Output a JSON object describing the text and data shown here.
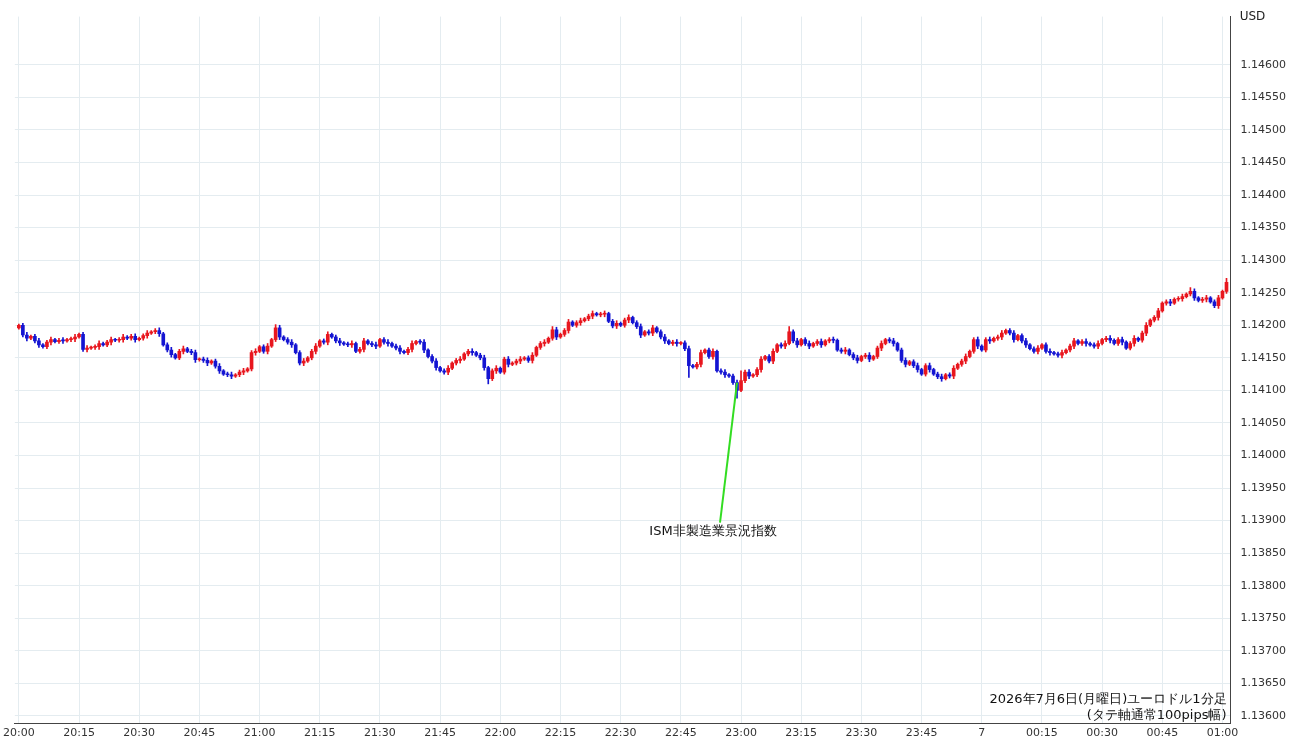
{
  "chart_data": {
    "type": "candlestick",
    "ylabel": "USD",
    "annotations": [
      {
        "text": "ISM非製造業景況指数",
        "x": "2026-07-06T22:59",
        "y": 1.14112
      },
      "2026年7月6日(月曜日)ユーロドル1分足",
      "(タテ軸通常100pips幅)"
    ],
    "xlim": [
      "2026-07-06T19:59",
      "2026-07-07T01:02"
    ],
    "xticks": [
      {
        "value": "2026-07-06T20:00",
        "label": "20:00"
      },
      {
        "value": "2026-07-06T20:15",
        "label": "20:15"
      },
      {
        "value": "2026-07-06T20:30",
        "label": "20:30"
      },
      {
        "value": "2026-07-06T20:45",
        "label": "20:45"
      },
      {
        "value": "2026-07-06T21:00",
        "label": "21:00"
      },
      {
        "value": "2026-07-06T21:15",
        "label": "21:15"
      },
      {
        "value": "2026-07-06T21:30",
        "label": "21:30"
      },
      {
        "value": "2026-07-06T21:45",
        "label": "21:45"
      },
      {
        "value": "2026-07-06T22:00",
        "label": "22:00"
      },
      {
        "value": "2026-07-06T22:15",
        "label": "22:15"
      },
      {
        "value": "2026-07-06T22:30",
        "label": "22:30"
      },
      {
        "value": "2026-07-06T22:45",
        "label": "22:45"
      },
      {
        "value": "2026-07-06T23:00",
        "label": "23:00"
      },
      {
        "value": "2026-07-06T23:15",
        "label": "23:15"
      },
      {
        "value": "2026-07-06T23:30",
        "label": "23:30"
      },
      {
        "value": "2026-07-06T23:45",
        "label": "23:45"
      },
      {
        "value": "2026-07-07T00:00",
        "label": "7"
      },
      {
        "value": "2026-07-07T00:15",
        "label": "00:15"
      },
      {
        "value": "2026-07-07T00:30",
        "label": "00:30"
      },
      {
        "value": "2026-07-07T00:45",
        "label": "00:45"
      },
      {
        "value": "2026-07-07T01:00",
        "label": "01:00"
      }
    ],
    "ylim": [
      1.13588,
      1.14674
    ],
    "yticks": [
      {
        "value": 1.136,
        "label": "1.13600"
      },
      {
        "value": 1.1365,
        "label": "1.13650"
      },
      {
        "value": 1.137,
        "label": "1.13700"
      },
      {
        "value": 1.1375,
        "label": "1.13750"
      },
      {
        "value": 1.138,
        "label": "1.13800"
      },
      {
        "value": 1.1385,
        "label": "1.13850"
      },
      {
        "value": 1.139,
        "label": "1.13900"
      },
      {
        "value": 1.1395,
        "label": "1.13950"
      },
      {
        "value": 1.14,
        "label": "1.14000"
      },
      {
        "value": 1.1405,
        "label": "1.14050"
      },
      {
        "value": 1.141,
        "label": "1.14100"
      },
      {
        "value": 1.1415,
        "label": "1.14150"
      },
      {
        "value": 1.142,
        "label": "1.14200"
      },
      {
        "value": 1.1425,
        "label": "1.14250"
      },
      {
        "value": 1.143,
        "label": "1.14300"
      },
      {
        "value": 1.1435,
        "label": "1.14350"
      },
      {
        "value": 1.144,
        "label": "1.14400"
      },
      {
        "value": 1.1445,
        "label": "1.14450"
      },
      {
        "value": 1.145,
        "label": "1.14500"
      },
      {
        "value": 1.1455,
        "label": "1.14550"
      },
      {
        "value": 1.146,
        "label": "1.14600"
      }
    ],
    "grid": true,
    "x": [
      "2026-07-06T20:00",
      "2026-07-06T20:01",
      "2026-07-06T20:02",
      "2026-07-06T20:03",
      "2026-07-06T20:04",
      "2026-07-06T20:05",
      "2026-07-06T20:06",
      "2026-07-06T20:07",
      "2026-07-06T20:08",
      "2026-07-06T20:09",
      "2026-07-06T20:10",
      "2026-07-06T20:11",
      "2026-07-06T20:12",
      "2026-07-06T20:13",
      "2026-07-06T20:14",
      "2026-07-06T20:15",
      "2026-07-06T20:16",
      "2026-07-06T20:17",
      "2026-07-06T20:18",
      "2026-07-06T20:19",
      "2026-07-06T20:20",
      "2026-07-06T20:21",
      "2026-07-06T20:22",
      "2026-07-06T20:23",
      "2026-07-06T20:24",
      "2026-07-06T20:25",
      "2026-07-06T20:26",
      "2026-07-06T20:27",
      "2026-07-06T20:28",
      "2026-07-06T20:29",
      "2026-07-06T20:30",
      "2026-07-06T20:31",
      "2026-07-06T20:32",
      "2026-07-06T20:33",
      "2026-07-06T20:34",
      "2026-07-06T20:35",
      "2026-07-06T20:36",
      "2026-07-06T20:37",
      "2026-07-06T20:38",
      "2026-07-06T20:39",
      "2026-07-06T20:40",
      "2026-07-06T20:41",
      "2026-07-06T20:42",
      "2026-07-06T20:43",
      "2026-07-06T20:44",
      "2026-07-06T20:45",
      "2026-07-06T20:46",
      "2026-07-06T20:47",
      "2026-07-06T20:48",
      "2026-07-06T20:49",
      "2026-07-06T20:50",
      "2026-07-06T20:51",
      "2026-07-06T20:52",
      "2026-07-06T20:53",
      "2026-07-06T20:54",
      "2026-07-06T20:55",
      "2026-07-06T20:56",
      "2026-07-06T20:57",
      "2026-07-06T20:58",
      "2026-07-06T20:59",
      "2026-07-06T21:00",
      "2026-07-06T21:01",
      "2026-07-06T21:02",
      "2026-07-06T21:03",
      "2026-07-06T21:04",
      "2026-07-06T21:05",
      "2026-07-06T21:06",
      "2026-07-06T21:07",
      "2026-07-06T21:08",
      "2026-07-06T21:09",
      "2026-07-06T21:10",
      "2026-07-06T21:11",
      "2026-07-06T21:12",
      "2026-07-06T21:13",
      "2026-07-06T21:14",
      "2026-07-06T21:15",
      "2026-07-06T21:16",
      "2026-07-06T21:17",
      "2026-07-06T21:18",
      "2026-07-06T21:19",
      "2026-07-06T21:20",
      "2026-07-06T21:21",
      "2026-07-06T21:22",
      "2026-07-06T21:23",
      "2026-07-06T21:24",
      "2026-07-06T21:25",
      "2026-07-06T21:26",
      "2026-07-06T21:27",
      "2026-07-06T21:28",
      "2026-07-06T21:29",
      "2026-07-06T21:30",
      "2026-07-06T21:31",
      "2026-07-06T21:32",
      "2026-07-06T21:33",
      "2026-07-06T21:34",
      "2026-07-06T21:35",
      "2026-07-06T21:36",
      "2026-07-06T21:37",
      "2026-07-06T21:38",
      "2026-07-06T21:39",
      "2026-07-06T21:40",
      "2026-07-06T21:41",
      "2026-07-06T21:42",
      "2026-07-06T21:43",
      "2026-07-06T21:44",
      "2026-07-06T21:45",
      "2026-07-06T21:46",
      "2026-07-06T21:47",
      "2026-07-06T21:48",
      "2026-07-06T21:49",
      "2026-07-06T21:50",
      "2026-07-06T21:51",
      "2026-07-06T21:52",
      "2026-07-06T21:53",
      "2026-07-06T21:54",
      "2026-07-06T21:55",
      "2026-07-06T21:56",
      "2026-07-06T21:57",
      "2026-07-06T21:58",
      "2026-07-06T21:59",
      "2026-07-06T22:00",
      "2026-07-06T22:01",
      "2026-07-06T22:02",
      "2026-07-06T22:03",
      "2026-07-06T22:04",
      "2026-07-06T22:05",
      "2026-07-06T22:06",
      "2026-07-06T22:07",
      "2026-07-06T22:08",
      "2026-07-06T22:09",
      "2026-07-06T22:10",
      "2026-07-06T22:11",
      "2026-07-06T22:12",
      "2026-07-06T22:13",
      "2026-07-06T22:14",
      "2026-07-06T22:15",
      "2026-07-06T22:16",
      "2026-07-06T22:17",
      "2026-07-06T22:18",
      "2026-07-06T22:19",
      "2026-07-06T22:20",
      "2026-07-06T22:21",
      "2026-07-06T22:22",
      "2026-07-06T22:23",
      "2026-07-06T22:24",
      "2026-07-06T22:25",
      "2026-07-06T22:26",
      "2026-07-06T22:27",
      "2026-07-06T22:28",
      "2026-07-06T22:29",
      "2026-07-06T22:30",
      "2026-07-06T22:31",
      "2026-07-06T22:32",
      "2026-07-06T22:33",
      "2026-07-06T22:34",
      "2026-07-06T22:35",
      "2026-07-06T22:36",
      "2026-07-06T22:37",
      "2026-07-06T22:38",
      "2026-07-06T22:39",
      "2026-07-06T22:40",
      "2026-07-06T22:41",
      "2026-07-06T22:42",
      "2026-07-06T22:43",
      "2026-07-06T22:44",
      "2026-07-06T22:45",
      "2026-07-06T22:46",
      "2026-07-06T22:47",
      "2026-07-06T22:48",
      "2026-07-06T22:49",
      "2026-07-06T22:50",
      "2026-07-06T22:51",
      "2026-07-06T22:52",
      "2026-07-06T22:53",
      "2026-07-06T22:54",
      "2026-07-06T22:55",
      "2026-07-06T22:56",
      "2026-07-06T22:57",
      "2026-07-06T22:58",
      "2026-07-06T22:59",
      "2026-07-06T23:00",
      "2026-07-06T23:01",
      "2026-07-06T23:02",
      "2026-07-06T23:03",
      "2026-07-06T23:04",
      "2026-07-06T23:05",
      "2026-07-06T23:06",
      "2026-07-06T23:07",
      "2026-07-06T23:08",
      "2026-07-06T23:09",
      "2026-07-06T23:10",
      "2026-07-06T23:11",
      "2026-07-06T23:12",
      "2026-07-06T23:13",
      "2026-07-06T23:14",
      "2026-07-06T23:15",
      "2026-07-06T23:16",
      "2026-07-06T23:17",
      "2026-07-06T23:18",
      "2026-07-06T23:19",
      "2026-07-06T23:20",
      "2026-07-06T23:21",
      "2026-07-06T23:22",
      "2026-07-06T23:23",
      "2026-07-06T23:24",
      "2026-07-06T23:25",
      "2026-07-06T23:26",
      "2026-07-06T23:27",
      "2026-07-06T23:28",
      "2026-07-06T23:29",
      "2026-07-06T23:30",
      "2026-07-06T23:31",
      "2026-07-06T23:32",
      "2026-07-06T23:33",
      "2026-07-06T23:34",
      "2026-07-06T23:35",
      "2026-07-06T23:36",
      "2026-07-06T23:37",
      "2026-07-06T23:38",
      "2026-07-06T23:39",
      "2026-07-06T23:40",
      "2026-07-06T23:41",
      "2026-07-06T23:42",
      "2026-07-06T23:43",
      "2026-07-06T23:44",
      "2026-07-06T23:45",
      "2026-07-06T23:46",
      "2026-07-06T23:47",
      "2026-07-06T23:48",
      "2026-07-06T23:49",
      "2026-07-06T23:50",
      "2026-07-06T23:51",
      "2026-07-06T23:52",
      "2026-07-06T23:53",
      "2026-07-06T23:54",
      "2026-07-06T23:55",
      "2026-07-06T23:56",
      "2026-07-06T23:57",
      "2026-07-06T23:58",
      "2026-07-06T23:59",
      "2026-07-07T00:00",
      "2026-07-07T00:01",
      "2026-07-07T00:02",
      "2026-07-07T00:03",
      "2026-07-07T00:04",
      "2026-07-07T00:05",
      "2026-07-07T00:06",
      "2026-07-07T00:07",
      "2026-07-07T00:08",
      "2026-07-07T00:09",
      "2026-07-07T00:10",
      "2026-07-07T00:11",
      "2026-07-07T00:12",
      "2026-07-07T00:13",
      "2026-07-07T00:14",
      "2026-07-07T00:15",
      "2026-07-07T00:16",
      "2026-07-07T00:17",
      "2026-07-07T00:18",
      "2026-07-07T00:19",
      "2026-07-07T00:20",
      "2026-07-07T00:21",
      "2026-07-07T00:22",
      "2026-07-07T00:23",
      "2026-07-07T00:24",
      "2026-07-07T00:25",
      "2026-07-07T00:26",
      "2026-07-07T00:27",
      "2026-07-07T00:28",
      "2026-07-07T00:29",
      "2026-07-07T00:30",
      "2026-07-07T00:31",
      "2026-07-07T00:32",
      "2026-07-07T00:33",
      "2026-07-07T00:34",
      "2026-07-07T00:35",
      "2026-07-07T00:36",
      "2026-07-07T00:37",
      "2026-07-07T00:38",
      "2026-07-07T00:39",
      "2026-07-07T00:40",
      "2026-07-07T00:41",
      "2026-07-07T00:42",
      "2026-07-07T00:43",
      "2026-07-07T00:44",
      "2026-07-07T00:45",
      "2026-07-07T00:46",
      "2026-07-07T00:47",
      "2026-07-07T00:48",
      "2026-07-07T00:49",
      "2026-07-07T00:50",
      "2026-07-07T00:51",
      "2026-07-07T00:52",
      "2026-07-07T00:53",
      "2026-07-07T00:54",
      "2026-07-07T00:55",
      "2026-07-07T00:56",
      "2026-07-07T00:57",
      "2026-07-07T00:58",
      "2026-07-07T00:59",
      "2026-07-07T01:00",
      "2026-07-07T01:01"
    ],
    "ohlc": [
      [
        1.14196,
        1.14202,
        1.14194,
        1.142
      ],
      [
        1.142,
        1.14203,
        1.14182,
        1.14185
      ],
      [
        1.14185,
        1.14189,
        1.14176,
        1.1418
      ],
      [
        1.1418,
        1.14185,
        1.14178,
        1.14183
      ],
      [
        1.14183,
        1.14186,
        1.14173,
        1.14176
      ],
      [
        1.14176,
        1.1418,
        1.14166,
        1.1417
      ],
      [
        1.1417,
        1.14172,
        1.14165,
        1.14167
      ],
      [
        1.14167,
        1.14177,
        1.14164,
        1.14174
      ],
      [
        1.14174,
        1.14182,
        1.1417,
        1.14178
      ],
      [
        1.14178,
        1.1418,
        1.14173,
        1.14175
      ],
      [
        1.14175,
        1.1418,
        1.14172,
        1.14177
      ],
      [
        1.14177,
        1.14181,
        1.14172,
        1.14176
      ],
      [
        1.14176,
        1.1418,
        1.14174,
        1.14178
      ],
      [
        1.14178,
        1.14182,
        1.14175,
        1.14179
      ],
      [
        1.14179,
        1.14186,
        1.14175,
        1.14182
      ],
      [
        1.14182,
        1.14188,
        1.1418,
        1.14186
      ],
      [
        1.14186,
        1.14189,
        1.1416,
        1.14163
      ],
      [
        1.14163,
        1.14169,
        1.14159,
        1.14165
      ],
      [
        1.14165,
        1.14168,
        1.14163,
        1.14166
      ],
      [
        1.14166,
        1.1417,
        1.14163,
        1.14167
      ],
      [
        1.14167,
        1.14176,
        1.14163,
        1.14172
      ],
      [
        1.14172,
        1.14174,
        1.14168,
        1.1417
      ],
      [
        1.1417,
        1.14177,
        1.14167,
        1.14174
      ],
      [
        1.14174,
        1.14182,
        1.1417,
        1.14178
      ],
      [
        1.14178,
        1.1418,
        1.14175,
        1.14177
      ],
      [
        1.14177,
        1.14181,
        1.14174,
        1.14178
      ],
      [
        1.14178,
        1.14186,
        1.14174,
        1.14182
      ],
      [
        1.14182,
        1.14184,
        1.14178,
        1.1418
      ],
      [
        1.1418,
        1.14186,
        1.14177,
        1.14183
      ],
      [
        1.14183,
        1.14187,
        1.14174,
        1.14178
      ],
      [
        1.14178,
        1.14182,
        1.14176,
        1.1418
      ],
      [
        1.1418,
        1.14187,
        1.14177,
        1.14184
      ],
      [
        1.14184,
        1.14192,
        1.1418,
        1.14188
      ],
      [
        1.14188,
        1.14192,
        1.14186,
        1.1419
      ],
      [
        1.1419,
        1.14195,
        1.14187,
        1.14192
      ],
      [
        1.14192,
        1.14196,
        1.14183,
        1.14187
      ],
      [
        1.14187,
        1.14189,
        1.14168,
        1.1417
      ],
      [
        1.1417,
        1.14173,
        1.14159,
        1.14162
      ],
      [
        1.14162,
        1.14166,
        1.14151,
        1.14155
      ],
      [
        1.14155,
        1.14157,
        1.14148,
        1.1415
      ],
      [
        1.1415,
        1.14163,
        1.14147,
        1.1416
      ],
      [
        1.1416,
        1.14168,
        1.14156,
        1.14164
      ],
      [
        1.14164,
        1.14166,
        1.14158,
        1.1416
      ],
      [
        1.1416,
        1.14163,
        1.14155,
        1.14158
      ],
      [
        1.14158,
        1.14162,
        1.14143,
        1.14147
      ],
      [
        1.14147,
        1.1415,
        1.14145,
        1.14148
      ],
      [
        1.14148,
        1.14151,
        1.14143,
        1.14146
      ],
      [
        1.14146,
        1.1415,
        1.14138,
        1.14142
      ],
      [
        1.14142,
        1.14147,
        1.1414,
        1.14145
      ],
      [
        1.14145,
        1.14148,
        1.14134,
        1.14137
      ],
      [
        1.14137,
        1.14141,
        1.14126,
        1.1413
      ],
      [
        1.1413,
        1.14132,
        1.14123,
        1.14125
      ],
      [
        1.14125,
        1.14128,
        1.14121,
        1.14124
      ],
      [
        1.14124,
        1.14128,
        1.14118,
        1.14122
      ],
      [
        1.14122,
        1.14126,
        1.1412,
        1.14124
      ],
      [
        1.14124,
        1.14131,
        1.14121,
        1.14128
      ],
      [
        1.14128,
        1.14134,
        1.14124,
        1.1413
      ],
      [
        1.1413,
        1.14135,
        1.14128,
        1.14133
      ],
      [
        1.14133,
        1.14161,
        1.1413,
        1.14158
      ],
      [
        1.14158,
        1.14164,
        1.14154,
        1.1416
      ],
      [
        1.1416,
        1.14169,
        1.14158,
        1.14167
      ],
      [
        1.14167,
        1.1417,
        1.14157,
        1.1416
      ],
      [
        1.1416,
        1.14172,
        1.14156,
        1.14168
      ],
      [
        1.14168,
        1.1418,
        1.14166,
        1.14178
      ],
      [
        1.14178,
        1.14201,
        1.14175,
        1.14196
      ],
      [
        1.14196,
        1.142,
        1.14178,
        1.14182
      ],
      [
        1.14182,
        1.14184,
        1.14176,
        1.14178
      ],
      [
        1.14178,
        1.14181,
        1.14171,
        1.14174
      ],
      [
        1.14174,
        1.14178,
        1.14166,
        1.1417
      ],
      [
        1.1417,
        1.14172,
        1.14156,
        1.14158
      ],
      [
        1.14158,
        1.14161,
        1.14139,
        1.14142
      ],
      [
        1.14142,
        1.14149,
        1.14138,
        1.14145
      ],
      [
        1.14145,
        1.14152,
        1.14143,
        1.1415
      ],
      [
        1.1415,
        1.14163,
        1.14147,
        1.1416
      ],
      [
        1.1416,
        1.14172,
        1.14156,
        1.14168
      ],
      [
        1.14168,
        1.14178,
        1.14166,
        1.14176
      ],
      [
        1.14176,
        1.14179,
        1.14171,
        1.14174
      ],
      [
        1.14174,
        1.1419,
        1.1417,
        1.14186
      ],
      [
        1.14186,
        1.14188,
        1.1418,
        1.14182
      ],
      [
        1.14182,
        1.14185,
        1.14173,
        1.14176
      ],
      [
        1.14176,
        1.1418,
        1.14169,
        1.14173
      ],
      [
        1.14173,
        1.14175,
        1.14169,
        1.14171
      ],
      [
        1.14171,
        1.14174,
        1.14167,
        1.1417
      ],
      [
        1.1417,
        1.14176,
        1.14166,
        1.14172
      ],
      [
        1.14172,
        1.14174,
        1.14158,
        1.1416
      ],
      [
        1.1416,
        1.14166,
        1.14157,
        1.14163
      ],
      [
        1.14163,
        1.1418,
        1.14159,
        1.14176
      ],
      [
        1.14176,
        1.14178,
        1.1417,
        1.14172
      ],
      [
        1.14172,
        1.14175,
        1.14167,
        1.1417
      ],
      [
        1.1417,
        1.14174,
        1.14164,
        1.14168
      ],
      [
        1.14168,
        1.1418,
        1.14166,
        1.14178
      ],
      [
        1.14178,
        1.14181,
        1.14171,
        1.14174
      ],
      [
        1.14174,
        1.14178,
        1.14168,
        1.14172
      ],
      [
        1.14172,
        1.14174,
        1.14166,
        1.14168
      ],
      [
        1.14168,
        1.14171,
        1.14162,
        1.14165
      ],
      [
        1.14165,
        1.14169,
        1.14156,
        1.1416
      ],
      [
        1.1416,
        1.14162,
        1.14156,
        1.14158
      ],
      [
        1.14158,
        1.14166,
        1.14155,
        1.14163
      ],
      [
        1.14163,
        1.14176,
        1.14159,
        1.14172
      ],
      [
        1.14172,
        1.14177,
        1.1417,
        1.14175
      ],
      [
        1.14175,
        1.14178,
        1.14171,
        1.14174
      ],
      [
        1.14174,
        1.14178,
        1.14158,
        1.14162
      ],
      [
        1.14162,
        1.14164,
        1.1415,
        1.14152
      ],
      [
        1.14152,
        1.14155,
        1.14142,
        1.14145
      ],
      [
        1.14145,
        1.14149,
        1.14131,
        1.14135
      ],
      [
        1.14135,
        1.14137,
        1.14128,
        1.1413
      ],
      [
        1.1413,
        1.14133,
        1.14125,
        1.14128
      ],
      [
        1.14128,
        1.14138,
        1.14124,
        1.14134
      ],
      [
        1.14134,
        1.14144,
        1.14132,
        1.14142
      ],
      [
        1.14142,
        1.14149,
        1.14139,
        1.14146
      ],
      [
        1.14146,
        1.14152,
        1.14142,
        1.14148
      ],
      [
        1.14148,
        1.14158,
        1.14146,
        1.14156
      ],
      [
        1.14156,
        1.14163,
        1.14153,
        1.1416
      ],
      [
        1.1416,
        1.14164,
        1.14154,
        1.14158
      ],
      [
        1.14158,
        1.1416,
        1.14152,
        1.14154
      ],
      [
        1.14154,
        1.14157,
        1.14147,
        1.1415
      ],
      [
        1.1415,
        1.14154,
        1.14131,
        1.14135
      ],
      [
        1.14135,
        1.14137,
        1.1411,
        1.14118
      ],
      [
        1.14118,
        1.14133,
        1.14115,
        1.1413
      ],
      [
        1.1413,
        1.14138,
        1.14126,
        1.14134
      ],
      [
        1.14134,
        1.14136,
        1.14126,
        1.14128
      ],
      [
        1.14128,
        1.14151,
        1.14125,
        1.14148
      ],
      [
        1.14148,
        1.14152,
        1.14136,
        1.1414
      ],
      [
        1.1414,
        1.14144,
        1.14138,
        1.14142
      ],
      [
        1.14142,
        1.14148,
        1.14139,
        1.14145
      ],
      [
        1.14145,
        1.14152,
        1.14141,
        1.14148
      ],
      [
        1.14148,
        1.14152,
        1.14146,
        1.1415
      ],
      [
        1.1415,
        1.14153,
        1.14143,
        1.14146
      ],
      [
        1.14146,
        1.14158,
        1.14142,
        1.14154
      ],
      [
        1.14154,
        1.14168,
        1.14152,
        1.14166
      ],
      [
        1.14166,
        1.14175,
        1.14163,
        1.14172
      ],
      [
        1.14172,
        1.14178,
        1.14168,
        1.14174
      ],
      [
        1.14174,
        1.14182,
        1.14172,
        1.1418
      ],
      [
        1.1418,
        1.14198,
        1.14177,
        1.14193
      ],
      [
        1.14193,
        1.14197,
        1.14178,
        1.14182
      ],
      [
        1.14182,
        1.14188,
        1.1418,
        1.14186
      ],
      [
        1.14186,
        1.14195,
        1.14183,
        1.14192
      ],
      [
        1.14192,
        1.14209,
        1.14188,
        1.14205
      ],
      [
        1.14205,
        1.14207,
        1.14198,
        1.142
      ],
      [
        1.142,
        1.14207,
        1.14197,
        1.14204
      ],
      [
        1.14204,
        1.14211,
        1.142,
        1.14207
      ],
      [
        1.14207,
        1.14212,
        1.14205,
        1.1421
      ],
      [
        1.1421,
        1.14217,
        1.14207,
        1.14214
      ],
      [
        1.14214,
        1.14222,
        1.1421,
        1.14218
      ],
      [
        1.14218,
        1.1422,
        1.14214,
        1.14216
      ],
      [
        1.14216,
        1.1422,
        1.14213,
        1.14217
      ],
      [
        1.14217,
        1.14222,
        1.14213,
        1.14218
      ],
      [
        1.14218,
        1.1422,
        1.14204,
        1.14206
      ],
      [
        1.14206,
        1.14209,
        1.14196,
        1.14199
      ],
      [
        1.14199,
        1.14207,
        1.14195,
        1.14203
      ],
      [
        1.14203,
        1.14205,
        1.14198,
        1.142
      ],
      [
        1.142,
        1.14211,
        1.14197,
        1.14208
      ],
      [
        1.14208,
        1.14216,
        1.14204,
        1.14212
      ],
      [
        1.14212,
        1.14214,
        1.14202,
        1.14204
      ],
      [
        1.14204,
        1.14207,
        1.14195,
        1.14198
      ],
      [
        1.14198,
        1.14202,
        1.14181,
        1.14185
      ],
      [
        1.14185,
        1.14192,
        1.14183,
        1.1419
      ],
      [
        1.1419,
        1.14193,
        1.14185,
        1.14188
      ],
      [
        1.14188,
        1.142,
        1.14184,
        1.14196
      ],
      [
        1.14196,
        1.14198,
        1.14188,
        1.1419
      ],
      [
        1.1419,
        1.14193,
        1.14179,
        1.14182
      ],
      [
        1.14182,
        1.14186,
        1.14172,
        1.14176
      ],
      [
        1.14176,
        1.14178,
        1.1417,
        1.14172
      ],
      [
        1.14172,
        1.14177,
        1.14169,
        1.14174
      ],
      [
        1.14174,
        1.14178,
        1.14168,
        1.14172
      ],
      [
        1.14172,
        1.14175,
        1.1417,
        1.14173
      ],
      [
        1.14173,
        1.14176,
        1.14161,
        1.14164
      ],
      [
        1.14164,
        1.14168,
        1.1412,
        1.14138
      ],
      [
        1.14138,
        1.1414,
        1.14134,
        1.14136
      ],
      [
        1.14136,
        1.14143,
        1.14133,
        1.1414
      ],
      [
        1.1414,
        1.14162,
        1.14136,
        1.14158
      ],
      [
        1.14158,
        1.14164,
        1.14156,
        1.14162
      ],
      [
        1.14162,
        1.14165,
        1.14149,
        1.14152
      ],
      [
        1.14152,
        1.14164,
        1.14148,
        1.1416
      ],
      [
        1.1416,
        1.14162,
        1.14128,
        1.1413
      ],
      [
        1.1413,
        1.14133,
        1.14125,
        1.14128
      ],
      [
        1.14128,
        1.14132,
        1.1412,
        1.14124
      ],
      [
        1.14124,
        1.14126,
        1.1412,
        1.14122
      ],
      [
        1.14122,
        1.14125,
        1.14109,
        1.14112
      ],
      [
        1.14112,
        1.14116,
        1.14088,
        1.141
      ],
      [
        1.141,
        1.1413,
        1.14098,
        1.14115
      ],
      [
        1.14115,
        1.14131,
        1.14112,
        1.14128
      ],
      [
        1.14128,
        1.14132,
        1.14118,
        1.14122
      ],
      [
        1.14122,
        1.14126,
        1.1412,
        1.14124
      ],
      [
        1.14124,
        1.14135,
        1.14121,
        1.14132
      ],
      [
        1.14132,
        1.14152,
        1.14128,
        1.14148
      ],
      [
        1.14148,
        1.14154,
        1.14146,
        1.14152
      ],
      [
        1.14152,
        1.14155,
        1.14142,
        1.14145
      ],
      [
        1.14145,
        1.14164,
        1.14141,
        1.1416
      ],
      [
        1.1416,
        1.14172,
        1.14158,
        1.1417
      ],
      [
        1.1417,
        1.14173,
        1.14165,
        1.14168
      ],
      [
        1.14168,
        1.14176,
        1.14164,
        1.14172
      ],
      [
        1.14172,
        1.14198,
        1.1417,
        1.1419
      ],
      [
        1.1419,
        1.14193,
        1.14173,
        1.14176
      ],
      [
        1.14176,
        1.1418,
        1.14166,
        1.1417
      ],
      [
        1.1417,
        1.1418,
        1.14168,
        1.14178
      ],
      [
        1.14178,
        1.14181,
        1.14169,
        1.14172
      ],
      [
        1.14172,
        1.14176,
        1.14164,
        1.14168
      ],
      [
        1.14168,
        1.14174,
        1.14166,
        1.14172
      ],
      [
        1.14172,
        1.14178,
        1.14169,
        1.14175
      ],
      [
        1.14175,
        1.14179,
        1.14166,
        1.1417
      ],
      [
        1.1417,
        1.14178,
        1.14168,
        1.14176
      ],
      [
        1.14176,
        1.14181,
        1.14173,
        1.14178
      ],
      [
        1.14178,
        1.14182,
        1.14173,
        1.14177
      ],
      [
        1.14177,
        1.14179,
        1.1416,
        1.14162
      ],
      [
        1.14162,
        1.14165,
        1.14157,
        1.1416
      ],
      [
        1.1416,
        1.14166,
        1.14156,
        1.14162
      ],
      [
        1.14162,
        1.14164,
        1.14153,
        1.14155
      ],
      [
        1.14155,
        1.14158,
        1.14147,
        1.1415
      ],
      [
        1.1415,
        1.14154,
        1.14142,
        1.14146
      ],
      [
        1.14146,
        1.14154,
        1.14144,
        1.14152
      ],
      [
        1.14152,
        1.14157,
        1.14149,
        1.14154
      ],
      [
        1.14154,
        1.14158,
        1.14144,
        1.14148
      ],
      [
        1.14148,
        1.14154,
        1.14146,
        1.14152
      ],
      [
        1.14152,
        1.14168,
        1.14149,
        1.14165
      ],
      [
        1.14165,
        1.14176,
        1.14161,
        1.14172
      ],
      [
        1.14172,
        1.1418,
        1.1417,
        1.14178
      ],
      [
        1.14178,
        1.14181,
        1.14173,
        1.14176
      ],
      [
        1.14176,
        1.1418,
        1.14168,
        1.14172
      ],
      [
        1.14172,
        1.14174,
        1.1416,
        1.14162
      ],
      [
        1.14162,
        1.14165,
        1.14143,
        1.14146
      ],
      [
        1.14146,
        1.1415,
        1.14136,
        1.1414
      ],
      [
        1.1414,
        1.14146,
        1.14138,
        1.14144
      ],
      [
        1.14144,
        1.14147,
        1.14135,
        1.14138
      ],
      [
        1.14138,
        1.14142,
        1.14128,
        1.14132
      ],
      [
        1.14132,
        1.14134,
        1.14123,
        1.14125
      ],
      [
        1.14125,
        1.14141,
        1.14122,
        1.14138
      ],
      [
        1.14138,
        1.14142,
        1.14128,
        1.14132
      ],
      [
        1.14132,
        1.14134,
        1.14123,
        1.14125
      ],
      [
        1.14125,
        1.14128,
        1.14118,
        1.14121
      ],
      [
        1.14121,
        1.14125,
        1.14114,
        1.14118
      ],
      [
        1.14118,
        1.14126,
        1.14116,
        1.14124
      ],
      [
        1.14124,
        1.14127,
        1.14119,
        1.14122
      ],
      [
        1.14122,
        1.14138,
        1.14118,
        1.14134
      ],
      [
        1.14134,
        1.14142,
        1.14132,
        1.1414
      ],
      [
        1.1414,
        1.14148,
        1.14137,
        1.14145
      ],
      [
        1.14145,
        1.14156,
        1.14141,
        1.14152
      ],
      [
        1.14152,
        1.14162,
        1.1415,
        1.1416
      ],
      [
        1.1416,
        1.14181,
        1.14157,
        1.14178
      ],
      [
        1.14178,
        1.14182,
        1.14164,
        1.14168
      ],
      [
        1.14168,
        1.1417,
        1.1416,
        1.14162
      ],
      [
        1.14162,
        1.14181,
        1.14159,
        1.14178
      ],
      [
        1.14178,
        1.14182,
        1.14172,
        1.14176
      ],
      [
        1.14176,
        1.14182,
        1.14174,
        1.1418
      ],
      [
        1.1418,
        1.14185,
        1.14177,
        1.14182
      ],
      [
        1.14182,
        1.14192,
        1.14178,
        1.14188
      ],
      [
        1.14188,
        1.14194,
        1.14186,
        1.14192
      ],
      [
        1.14192,
        1.14195,
        1.14185,
        1.14188
      ],
      [
        1.14188,
        1.14192,
        1.14174,
        1.14178
      ],
      [
        1.14178,
        1.14186,
        1.14176,
        1.14184
      ],
      [
        1.14184,
        1.14187,
        1.14173,
        1.14176
      ],
      [
        1.14176,
        1.1418,
        1.14166,
        1.1417
      ],
      [
        1.1417,
        1.14172,
        1.14162,
        1.14164
      ],
      [
        1.14164,
        1.14167,
        1.14157,
        1.1416
      ],
      [
        1.1416,
        1.14169,
        1.14156,
        1.14165
      ],
      [
        1.14165,
        1.14172,
        1.14163,
        1.1417
      ],
      [
        1.1417,
        1.14173,
        1.14157,
        1.1416
      ],
      [
        1.1416,
        1.14164,
        1.14154,
        1.14158
      ],
      [
        1.14158,
        1.1416,
        1.14154,
        1.14156
      ],
      [
        1.14156,
        1.14159,
        1.14151,
        1.14154
      ],
      [
        1.14154,
        1.14162,
        1.1415,
        1.14158
      ],
      [
        1.14158,
        1.14164,
        1.14156,
        1.14162
      ],
      [
        1.14162,
        1.14171,
        1.14159,
        1.14168
      ],
      [
        1.14168,
        1.1418,
        1.14164,
        1.14176
      ],
      [
        1.14176,
        1.14178,
        1.1417,
        1.14172
      ],
      [
        1.14172,
        1.14178,
        1.14169,
        1.14175
      ],
      [
        1.14175,
        1.14179,
        1.14168,
        1.14172
      ],
      [
        1.14172,
        1.14174,
        1.14168,
        1.1417
      ],
      [
        1.1417,
        1.14173,
        1.14165,
        1.14168
      ],
      [
        1.14168,
        1.14176,
        1.14164,
        1.14172
      ],
      [
        1.14172,
        1.1418,
        1.1417,
        1.14178
      ],
      [
        1.14178,
        1.14183,
        1.14175,
        1.1418
      ],
      [
        1.1418,
        1.14184,
        1.14173,
        1.14177
      ],
      [
        1.14177,
        1.14179,
        1.1417,
        1.14172
      ],
      [
        1.14172,
        1.14181,
        1.14169,
        1.14178
      ],
      [
        1.14178,
        1.14182,
        1.1417,
        1.14174
      ],
      [
        1.14174,
        1.14176,
        1.14163,
        1.14165
      ],
      [
        1.14165,
        1.14175,
        1.14162,
        1.14172
      ],
      [
        1.14172,
        1.14184,
        1.14168,
        1.1418
      ],
      [
        1.1418,
        1.14182,
        1.14175,
        1.14177
      ],
      [
        1.14177,
        1.14191,
        1.14174,
        1.14188
      ],
      [
        1.14188,
        1.14204,
        1.14184,
        1.142
      ],
      [
        1.142,
        1.1421,
        1.14198,
        1.14208
      ],
      [
        1.14208,
        1.14215,
        1.14205,
        1.14212
      ],
      [
        1.14212,
        1.14226,
        1.14208,
        1.14222
      ],
      [
        1.14222,
        1.14236,
        1.1422,
        1.14234
      ],
      [
        1.14234,
        1.14239,
        1.14231,
        1.14236
      ],
      [
        1.14236,
        1.1424,
        1.1423,
        1.14234
      ],
      [
        1.14234,
        1.14242,
        1.14232,
        1.1424
      ],
      [
        1.1424,
        1.14244,
        1.14237,
        1.14241
      ],
      [
        1.14241,
        1.14248,
        1.14237,
        1.14244
      ],
      [
        1.14244,
        1.1425,
        1.14242,
        1.14248
      ],
      [
        1.14248,
        1.14258,
        1.14245,
        1.14252
      ],
      [
        1.14252,
        1.14256,
        1.14238,
        1.14242
      ],
      [
        1.14242,
        1.14244,
        1.14236,
        1.14238
      ],
      [
        1.14238,
        1.14243,
        1.14235,
        1.1424
      ],
      [
        1.1424,
        1.14246,
        1.14236,
        1.14242
      ],
      [
        1.14242,
        1.14244,
        1.14234,
        1.14236
      ],
      [
        1.14236,
        1.14239,
        1.14227,
        1.1423
      ],
      [
        1.1423,
        1.14246,
        1.14226,
        1.14242
      ],
      [
        1.14242,
        1.14254,
        1.1424,
        1.14252
      ],
      [
        1.14252,
        1.14272,
        1.14249,
        1.14266
      ]
    ]
  }
}
